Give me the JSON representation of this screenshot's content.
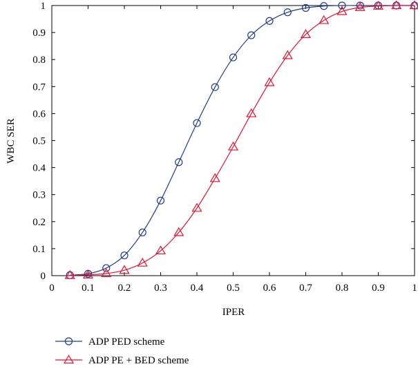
{
  "chart_data": {
    "type": "line",
    "xlabel": "IPER",
    "ylabel": "WBC SER",
    "xlim": [
      0,
      1
    ],
    "ylim": [
      0,
      1
    ],
    "grid": false,
    "legend_position": "bottom",
    "x_ticks": [
      "0",
      "0.1",
      "0.2",
      "0.3",
      "0.4",
      "0.5",
      "0.6",
      "0.7",
      "0.8",
      "0.9",
      "1"
    ],
    "y_ticks": [
      "0",
      "0.1",
      "0.2",
      "0.3",
      "0.4",
      "0.5",
      "0.6",
      "0.7",
      "0.8",
      "0.9",
      "1"
    ],
    "x": [
      0.05,
      0.1,
      0.15,
      0.2,
      0.25,
      0.3,
      0.35,
      0.4,
      0.45,
      0.5,
      0.55,
      0.6,
      0.65,
      0.7,
      0.75,
      0.8,
      0.85,
      0.9,
      0.95,
      1.0
    ],
    "series": [
      {
        "name": "ADP PED scheme",
        "color": "#1f3a93",
        "marker": "circle",
        "values": [
          0.002,
          0.007,
          0.028,
          0.075,
          0.16,
          0.278,
          0.42,
          0.565,
          0.698,
          0.808,
          0.89,
          0.943,
          0.975,
          0.991,
          0.998,
          1.0,
          1.0,
          1.0,
          1.0,
          1.0
        ]
      },
      {
        "name": "ADP PE + BED scheme",
        "color": "#e8112d",
        "marker": "triangle",
        "values": [
          0.001,
          0.003,
          0.008,
          0.02,
          0.047,
          0.092,
          0.16,
          0.25,
          0.36,
          0.477,
          0.6,
          0.715,
          0.815,
          0.893,
          0.945,
          0.978,
          0.993,
          0.998,
          1.0,
          1.0
        ]
      }
    ]
  }
}
